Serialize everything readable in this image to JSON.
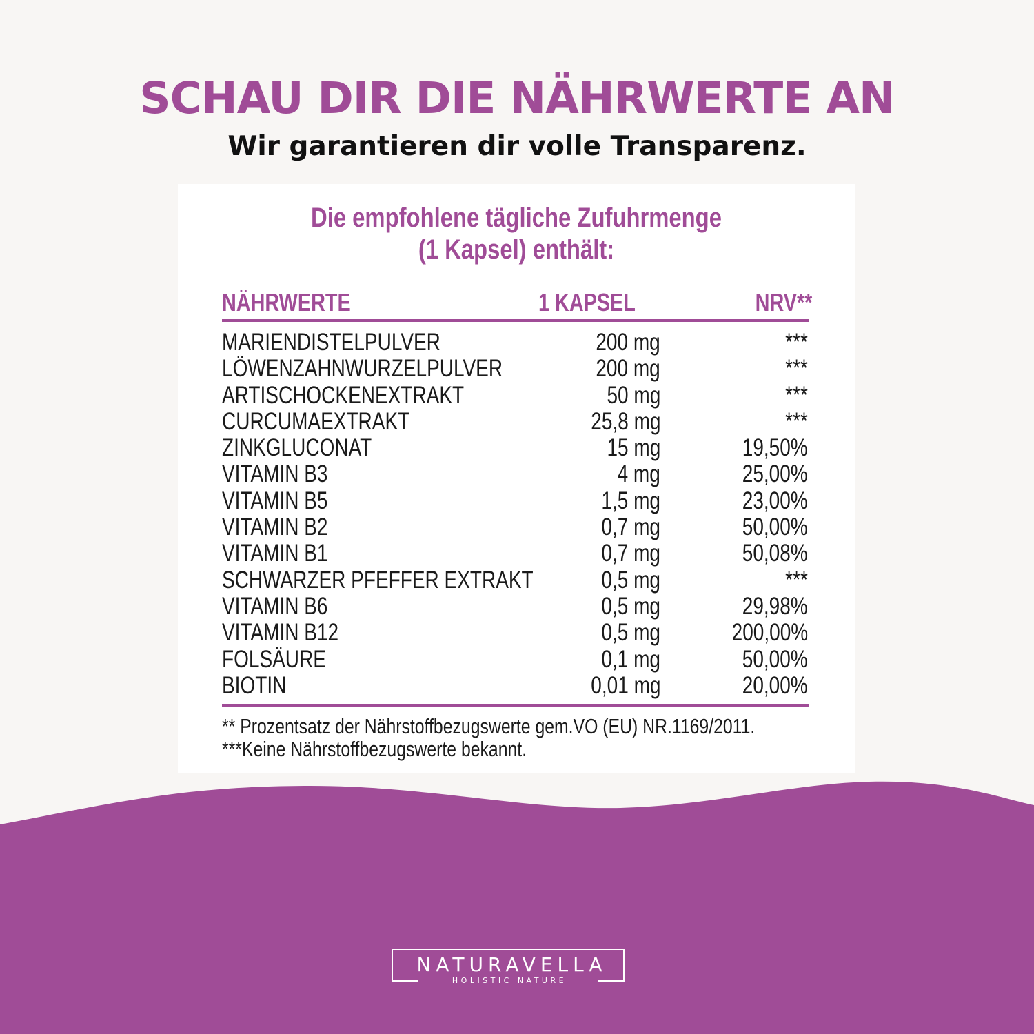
{
  "header": {
    "headline": "SCHAU DIR DIE NÄHRWERTE AN",
    "subline": "Wir garantieren dir volle Transparenz."
  },
  "panel": {
    "title_line1": "Die empfohlene tägliche Zufuhrmenge",
    "title_line2": "(1 Kapsel) enthält:",
    "columns": {
      "name": "NÄHRWERTE",
      "amount": "1 KAPSEL",
      "nrv": "NRV**"
    },
    "rows": [
      {
        "name": "MARIENDISTELPULVER",
        "amount": "200 mg",
        "nrv": "***"
      },
      {
        "name": "LÖWENZAHNWURZELPULVER",
        "amount": "200 mg",
        "nrv": "***"
      },
      {
        "name": "ARTISCHOCKENEXTRAKT",
        "amount": "50 mg",
        "nrv": "***"
      },
      {
        "name": "CURCUMAEXTRAKT",
        "amount": "25,8 mg",
        "nrv": "***"
      },
      {
        "name": "ZINKGLUCONAT",
        "amount": "15 mg",
        "nrv": "19,50%"
      },
      {
        "name": "VITAMIN B3",
        "amount": "4 mg",
        "nrv": "25,00%"
      },
      {
        "name": "VITAMIN B5",
        "amount": "1,5 mg",
        "nrv": "23,00%"
      },
      {
        "name": "VITAMIN B2",
        "amount": "0,7 mg",
        "nrv": "50,00%"
      },
      {
        "name": "VITAMIN B1",
        "amount": "0,7 mg",
        "nrv": "50,08%"
      },
      {
        "name": "SCHWARZER PFEFFER EXTRAKT",
        "amount": "0,5 mg",
        "nrv": "***"
      },
      {
        "name": "VITAMIN B6",
        "amount": "0,5 mg",
        "nrv": "29,98%"
      },
      {
        "name": "VITAMIN B12",
        "amount": "0,5 mg",
        "nrv": "200,00%"
      },
      {
        "name": "FOLSÄURE",
        "amount": "0,1 mg",
        "nrv": "50,00%"
      },
      {
        "name": "BIOTIN",
        "amount": "0,01 mg",
        "nrv": "20,00%"
      }
    ],
    "footnote1": "** Prozentsatz der Nährstoffbezugswerte gem.VO (EU) NR.1169/2011.",
    "footnote2": "***Keine Nährstoffbezugswerte bekannt."
  },
  "brand": {
    "name": "NATURAVELLA",
    "tagline": "HOLISTIC NATURE"
  },
  "colors": {
    "accent": "#a04c97",
    "background": "#f8f6f4",
    "text": "#111111"
  }
}
